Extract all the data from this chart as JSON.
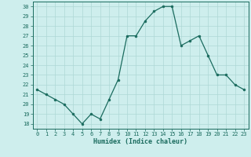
{
  "x": [
    0,
    1,
    2,
    3,
    4,
    5,
    6,
    7,
    8,
    9,
    10,
    11,
    12,
    13,
    14,
    15,
    16,
    17,
    18,
    19,
    20,
    21,
    22,
    23
  ],
  "y": [
    21.5,
    21.0,
    20.5,
    20.0,
    19.0,
    18.0,
    19.0,
    18.5,
    20.5,
    22.5,
    27.0,
    27.0,
    28.5,
    29.5,
    30.0,
    30.0,
    26.0,
    26.5,
    27.0,
    25.0,
    23.0,
    23.0,
    22.0,
    21.5
  ],
  "line_color": "#1a6b5e",
  "marker": "o",
  "marker_size": 2.0,
  "linewidth": 0.9,
  "xlabel": "Humidex (Indice chaleur)",
  "xlim": [
    -0.5,
    23.5
  ],
  "ylim": [
    17.5,
    30.5
  ],
  "yticks": [
    18,
    19,
    20,
    21,
    22,
    23,
    24,
    25,
    26,
    27,
    28,
    29,
    30
  ],
  "xticks": [
    0,
    1,
    2,
    3,
    4,
    5,
    6,
    7,
    8,
    9,
    10,
    11,
    12,
    13,
    14,
    15,
    16,
    17,
    18,
    19,
    20,
    21,
    22,
    23
  ],
  "bg_color": "#ceeeed",
  "grid_color": "#aed8d5",
  "tick_color": "#1a6b5e",
  "label_color": "#1a6b5e"
}
